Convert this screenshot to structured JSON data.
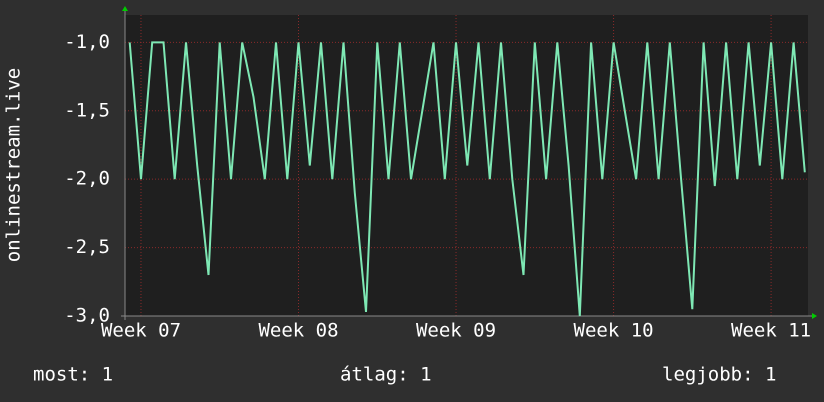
{
  "chart_data": {
    "type": "line",
    "ylabel": "onlinestream.live",
    "x": [
      -0.5,
      0,
      0.5,
      1,
      1.5,
      2,
      2.5,
      3,
      3.5,
      4,
      4.5,
      5,
      5.5,
      6,
      6.5,
      7,
      7.5,
      8,
      8.5,
      9,
      9.5,
      10,
      10.5,
      11,
      11.5,
      12,
      12.5,
      13,
      13.5,
      14,
      14.5,
      15,
      15.5,
      16,
      16.5,
      17,
      17.5,
      18,
      18.5,
      19,
      19.5,
      20,
      20.5,
      21,
      21.5,
      22,
      22.5,
      23,
      23.5,
      24,
      24.5,
      25,
      25.5,
      26,
      26.5,
      27,
      27.5,
      28,
      28.5,
      29,
      29.5
    ],
    "series": [
      {
        "color": "#7ee8b4",
        "values": [
          -1.0,
          -2.0,
          -1.0,
          -1.0,
          -2.0,
          -1.0,
          -1.9,
          -2.7,
          -1.0,
          -2.0,
          -1.0,
          -1.4,
          -2.0,
          -1.0,
          -2.0,
          -1.0,
          -1.9,
          -1.0,
          -2.0,
          -1.0,
          -2.1,
          -2.97,
          -1.0,
          -2.0,
          -1.0,
          -2.0,
          -1.5,
          -1.0,
          -2.0,
          -1.0,
          -1.9,
          -1.0,
          -2.0,
          -1.0,
          -2.0,
          -2.7,
          -1.0,
          -2.0,
          -1.0,
          -1.9,
          -3.0,
          -1.0,
          -2.0,
          -1.0,
          -1.5,
          -2.0,
          -1.0,
          -2.0,
          -1.0,
          -2.0,
          -2.95,
          -1.0,
          -2.05,
          -1.0,
          -2.0,
          -1.0,
          -1.9,
          -1.0,
          -2.0,
          -1.0,
          -1.95
        ]
      }
    ],
    "xlim": [
      -0.71,
      29.64
    ],
    "xticks": [
      {
        "value": 0,
        "label": "Week 07"
      },
      {
        "value": 7,
        "label": "Week 08"
      },
      {
        "value": 14,
        "label": "Week 09"
      },
      {
        "value": 21,
        "label": "Week 10"
      },
      {
        "value": 28,
        "label": "Week 11"
      }
    ],
    "ylim": [
      -3.0,
      -0.8
    ],
    "yticks": [
      {
        "value": -3.0,
        "label": "-3,0"
      },
      {
        "value": -2.5,
        "label": "-2,5"
      },
      {
        "value": -2.0,
        "label": "-2,0"
      },
      {
        "value": -1.5,
        "label": "-1,5"
      },
      {
        "value": -1.0,
        "label": "-1,0"
      }
    ],
    "grid": true
  },
  "footer": {
    "current": "most: 1",
    "average": "átlag: 1",
    "best": "legjobb: 1"
  }
}
